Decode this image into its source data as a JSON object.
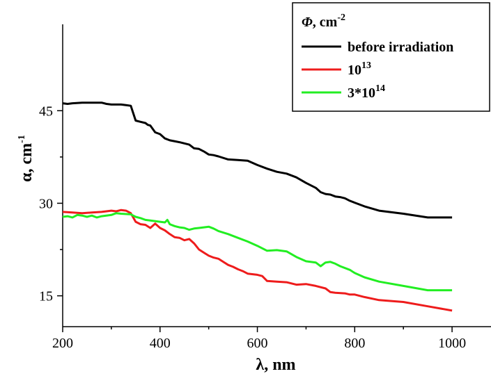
{
  "chart_data": {
    "type": "line",
    "xlabel": "λ, nm",
    "ylabel": "α, cm",
    "ylabel_sup": "-1",
    "xlim": [
      200,
      1080
    ],
    "ylim": [
      10,
      59
    ],
    "x_ticks": [
      200,
      400,
      600,
      800,
      1000
    ],
    "x_minor_ticks": [
      300,
      500,
      700,
      900
    ],
    "y_ticks": [
      15,
      30,
      45
    ],
    "y_minor_ticks": [
      22.5,
      37.5
    ],
    "grid": false,
    "legend": {
      "position": "top-right",
      "title_symbol": "Φ",
      "title_rest": ", cm",
      "title_sup": "-2"
    },
    "series": [
      {
        "name": "before irradiation",
        "color": "#000000",
        "points": [
          [
            200,
            46.2
          ],
          [
            210,
            46.1
          ],
          [
            220,
            46.2
          ],
          [
            240,
            46.3
          ],
          [
            260,
            46.3
          ],
          [
            280,
            46.3
          ],
          [
            290,
            46.1
          ],
          [
            300,
            46.0
          ],
          [
            320,
            46.0
          ],
          [
            330,
            45.9
          ],
          [
            340,
            45.8
          ],
          [
            350,
            43.4
          ],
          [
            360,
            43.2
          ],
          [
            370,
            43.0
          ],
          [
            375,
            42.7
          ],
          [
            380,
            42.6
          ],
          [
            390,
            41.5
          ],
          [
            400,
            41.2
          ],
          [
            410,
            40.5
          ],
          [
            420,
            40.2
          ],
          [
            440,
            39.9
          ],
          [
            460,
            39.5
          ],
          [
            470,
            38.9
          ],
          [
            480,
            38.8
          ],
          [
            490,
            38.4
          ],
          [
            500,
            37.9
          ],
          [
            510,
            37.8
          ],
          [
            520,
            37.6
          ],
          [
            540,
            37.1
          ],
          [
            560,
            37.0
          ],
          [
            580,
            36.9
          ],
          [
            600,
            36.2
          ],
          [
            620,
            35.6
          ],
          [
            640,
            35.1
          ],
          [
            660,
            34.8
          ],
          [
            680,
            34.2
          ],
          [
            700,
            33.3
          ],
          [
            720,
            32.5
          ],
          [
            730,
            31.8
          ],
          [
            740,
            31.5
          ],
          [
            750,
            31.4
          ],
          [
            760,
            31.1
          ],
          [
            770,
            31.0
          ],
          [
            780,
            30.8
          ],
          [
            790,
            30.4
          ],
          [
            800,
            30.1
          ],
          [
            820,
            29.5
          ],
          [
            850,
            28.8
          ],
          [
            900,
            28.3
          ],
          [
            950,
            27.7
          ],
          [
            1000,
            27.7
          ]
        ]
      },
      {
        "name": "10",
        "name_sup": "13",
        "color": "#ee1c1c",
        "points": [
          [
            200,
            28.6
          ],
          [
            220,
            28.5
          ],
          [
            240,
            28.4
          ],
          [
            260,
            28.5
          ],
          [
            280,
            28.6
          ],
          [
            300,
            28.8
          ],
          [
            310,
            28.7
          ],
          [
            320,
            28.9
          ],
          [
            330,
            28.8
          ],
          [
            340,
            28.4
          ],
          [
            350,
            27.0
          ],
          [
            360,
            26.6
          ],
          [
            370,
            26.5
          ],
          [
            380,
            26.0
          ],
          [
            390,
            26.7
          ],
          [
            400,
            26.0
          ],
          [
            410,
            25.6
          ],
          [
            420,
            25.0
          ],
          [
            430,
            24.5
          ],
          [
            440,
            24.4
          ],
          [
            450,
            24.0
          ],
          [
            460,
            24.2
          ],
          [
            470,
            23.5
          ],
          [
            480,
            22.5
          ],
          [
            490,
            22.0
          ],
          [
            500,
            21.5
          ],
          [
            510,
            21.2
          ],
          [
            520,
            21.0
          ],
          [
            530,
            20.5
          ],
          [
            540,
            20.0
          ],
          [
            550,
            19.7
          ],
          [
            560,
            19.3
          ],
          [
            570,
            19.0
          ],
          [
            580,
            18.6
          ],
          [
            600,
            18.4
          ],
          [
            610,
            18.2
          ],
          [
            620,
            17.4
          ],
          [
            640,
            17.3
          ],
          [
            660,
            17.2
          ],
          [
            680,
            16.8
          ],
          [
            700,
            16.9
          ],
          [
            720,
            16.6
          ],
          [
            740,
            16.2
          ],
          [
            750,
            15.6
          ],
          [
            760,
            15.5
          ],
          [
            780,
            15.4
          ],
          [
            790,
            15.2
          ],
          [
            800,
            15.2
          ],
          [
            820,
            14.8
          ],
          [
            850,
            14.3
          ],
          [
            900,
            14.0
          ],
          [
            950,
            13.3
          ],
          [
            1000,
            12.6
          ]
        ]
      },
      {
        "name": "3*10",
        "name_sup": "14",
        "color": "#22ee22",
        "points": [
          [
            200,
            27.8
          ],
          [
            210,
            27.9
          ],
          [
            220,
            27.7
          ],
          [
            230,
            28.1
          ],
          [
            240,
            28.0
          ],
          [
            250,
            27.8
          ],
          [
            260,
            28.0
          ],
          [
            270,
            27.7
          ],
          [
            280,
            27.9
          ],
          [
            300,
            28.1
          ],
          [
            310,
            28.4
          ],
          [
            320,
            28.3
          ],
          [
            340,
            28.2
          ],
          [
            350,
            27.8
          ],
          [
            360,
            27.6
          ],
          [
            370,
            27.3
          ],
          [
            380,
            27.2
          ],
          [
            400,
            27.0
          ],
          [
            410,
            26.9
          ],
          [
            415,
            27.3
          ],
          [
            420,
            26.6
          ],
          [
            430,
            26.3
          ],
          [
            440,
            26.1
          ],
          [
            450,
            26.0
          ],
          [
            460,
            25.7
          ],
          [
            470,
            25.9
          ],
          [
            480,
            26.0
          ],
          [
            490,
            26.1
          ],
          [
            500,
            26.2
          ],
          [
            510,
            25.9
          ],
          [
            520,
            25.5
          ],
          [
            540,
            25.0
          ],
          [
            560,
            24.4
          ],
          [
            580,
            23.8
          ],
          [
            600,
            23.1
          ],
          [
            620,
            22.3
          ],
          [
            640,
            22.4
          ],
          [
            660,
            22.2
          ],
          [
            680,
            21.3
          ],
          [
            700,
            20.6
          ],
          [
            720,
            20.4
          ],
          [
            730,
            19.8
          ],
          [
            740,
            20.4
          ],
          [
            750,
            20.5
          ],
          [
            760,
            20.2
          ],
          [
            770,
            19.8
          ],
          [
            790,
            19.2
          ],
          [
            800,
            18.7
          ],
          [
            820,
            18.0
          ],
          [
            850,
            17.3
          ],
          [
            900,
            16.6
          ],
          [
            950,
            15.9
          ],
          [
            1000,
            15.9
          ]
        ]
      }
    ]
  }
}
